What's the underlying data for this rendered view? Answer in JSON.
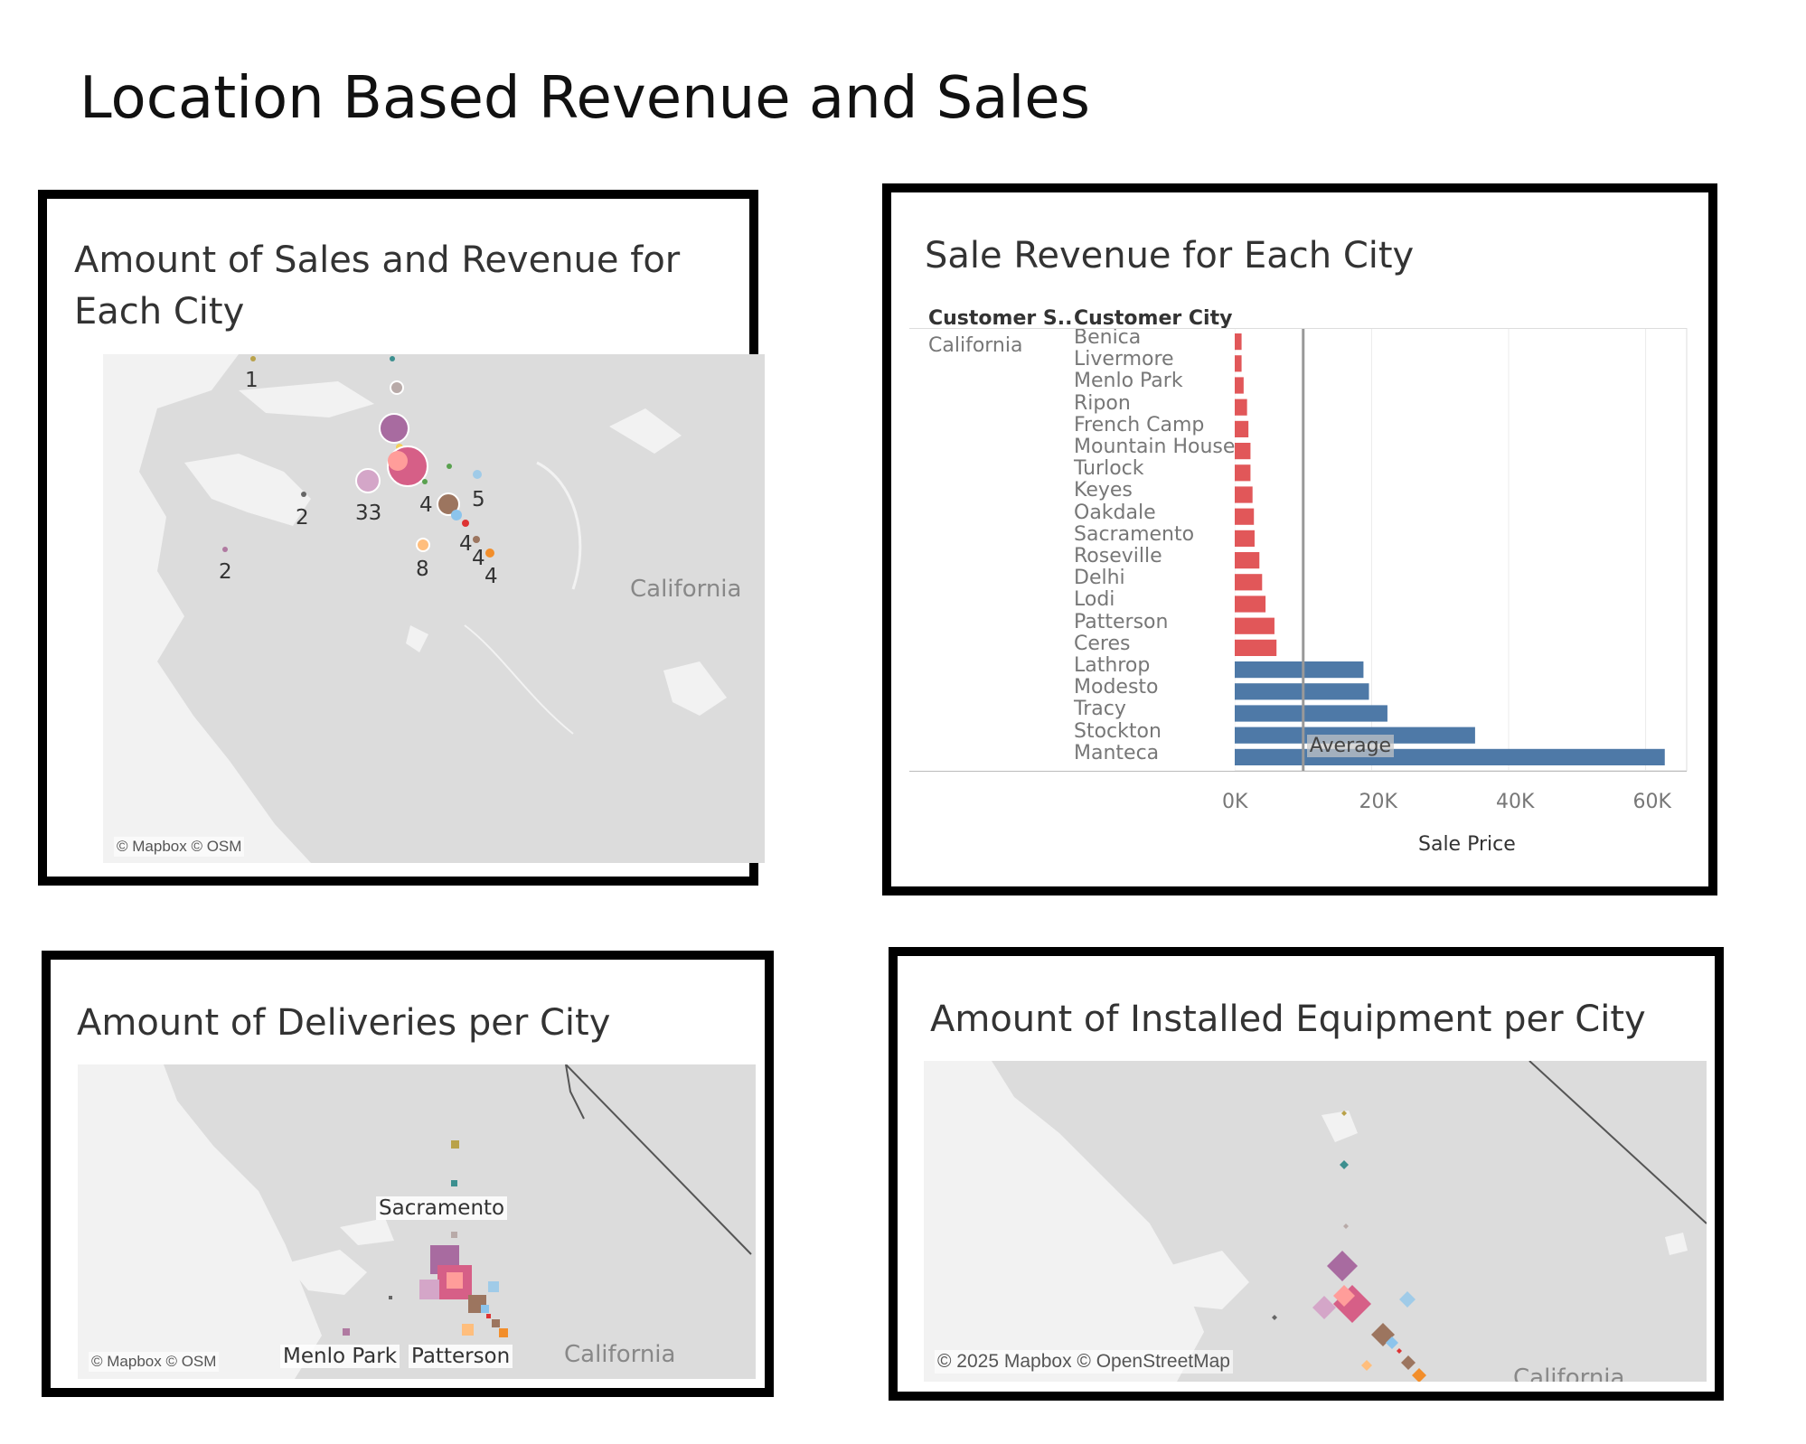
{
  "dashboard": {
    "title": "Location Based Revenue and Sales"
  },
  "colors": {
    "below_average": "#e15759",
    "above_average": "#4e79a7",
    "map_land": "#dcdcdc",
    "map_water": "#f2f2f2",
    "panel_border": "#000000"
  },
  "sales_map": {
    "title_line1": "Amount of Sales and Revenue for",
    "title_line2": "Each City",
    "attribution": "© Mapbox © OSM",
    "state_label": "California",
    "count_labels": [
      "1",
      "2",
      "2",
      "33",
      "4",
      "5",
      "8",
      "4",
      "4",
      "4"
    ]
  },
  "revenue_chart": {
    "title": "Sale Revenue for Each City",
    "col_state_header": "Customer S..",
    "col_city_header": "Customer City",
    "state_value": "California",
    "axis_title": "Sale Price",
    "reference_line_label": "Average",
    "tick_labels": [
      "0K",
      "20K",
      "40K",
      "60K"
    ]
  },
  "deliveries_map": {
    "title": "Amount of Deliveries per City",
    "attribution": "© Mapbox © OSM",
    "state_label": "California",
    "city_labels": [
      "Sacramento",
      "Menlo Park",
      "Patterson"
    ]
  },
  "equipment_map": {
    "title": "Amount of Installed Equipment per City",
    "attribution": "© 2025 Mapbox © OpenStreetMap",
    "state_label": "California"
  },
  "chart_data": {
    "type": "bar",
    "orientation": "horizontal",
    "title": "Sale Revenue for Each City",
    "xlabel": "Sale Price",
    "ylabel": "Customer City",
    "xlim": [
      0,
      66000
    ],
    "grid": true,
    "reference_line": {
      "label": "Average",
      "value": 10000
    },
    "categories": [
      "Benica",
      "Livermore",
      "Menlo Park",
      "Ripon",
      "French Camp",
      "Mountain House",
      "Turlock",
      "Keyes",
      "Oakdale",
      "Sacramento",
      "Roseville",
      "Delhi",
      "Lodi",
      "Patterson",
      "Ceres",
      "Lathrop",
      "Modesto",
      "Tracy",
      "Stockton",
      "Manteca"
    ],
    "values": [
      1000,
      1000,
      1300,
      1800,
      2000,
      2300,
      2300,
      2600,
      2800,
      2900,
      3600,
      4000,
      4500,
      5800,
      6100,
      18800,
      19600,
      22300,
      35100,
      62800
    ],
    "x_ticks": [
      0,
      20000,
      40000,
      60000
    ]
  }
}
